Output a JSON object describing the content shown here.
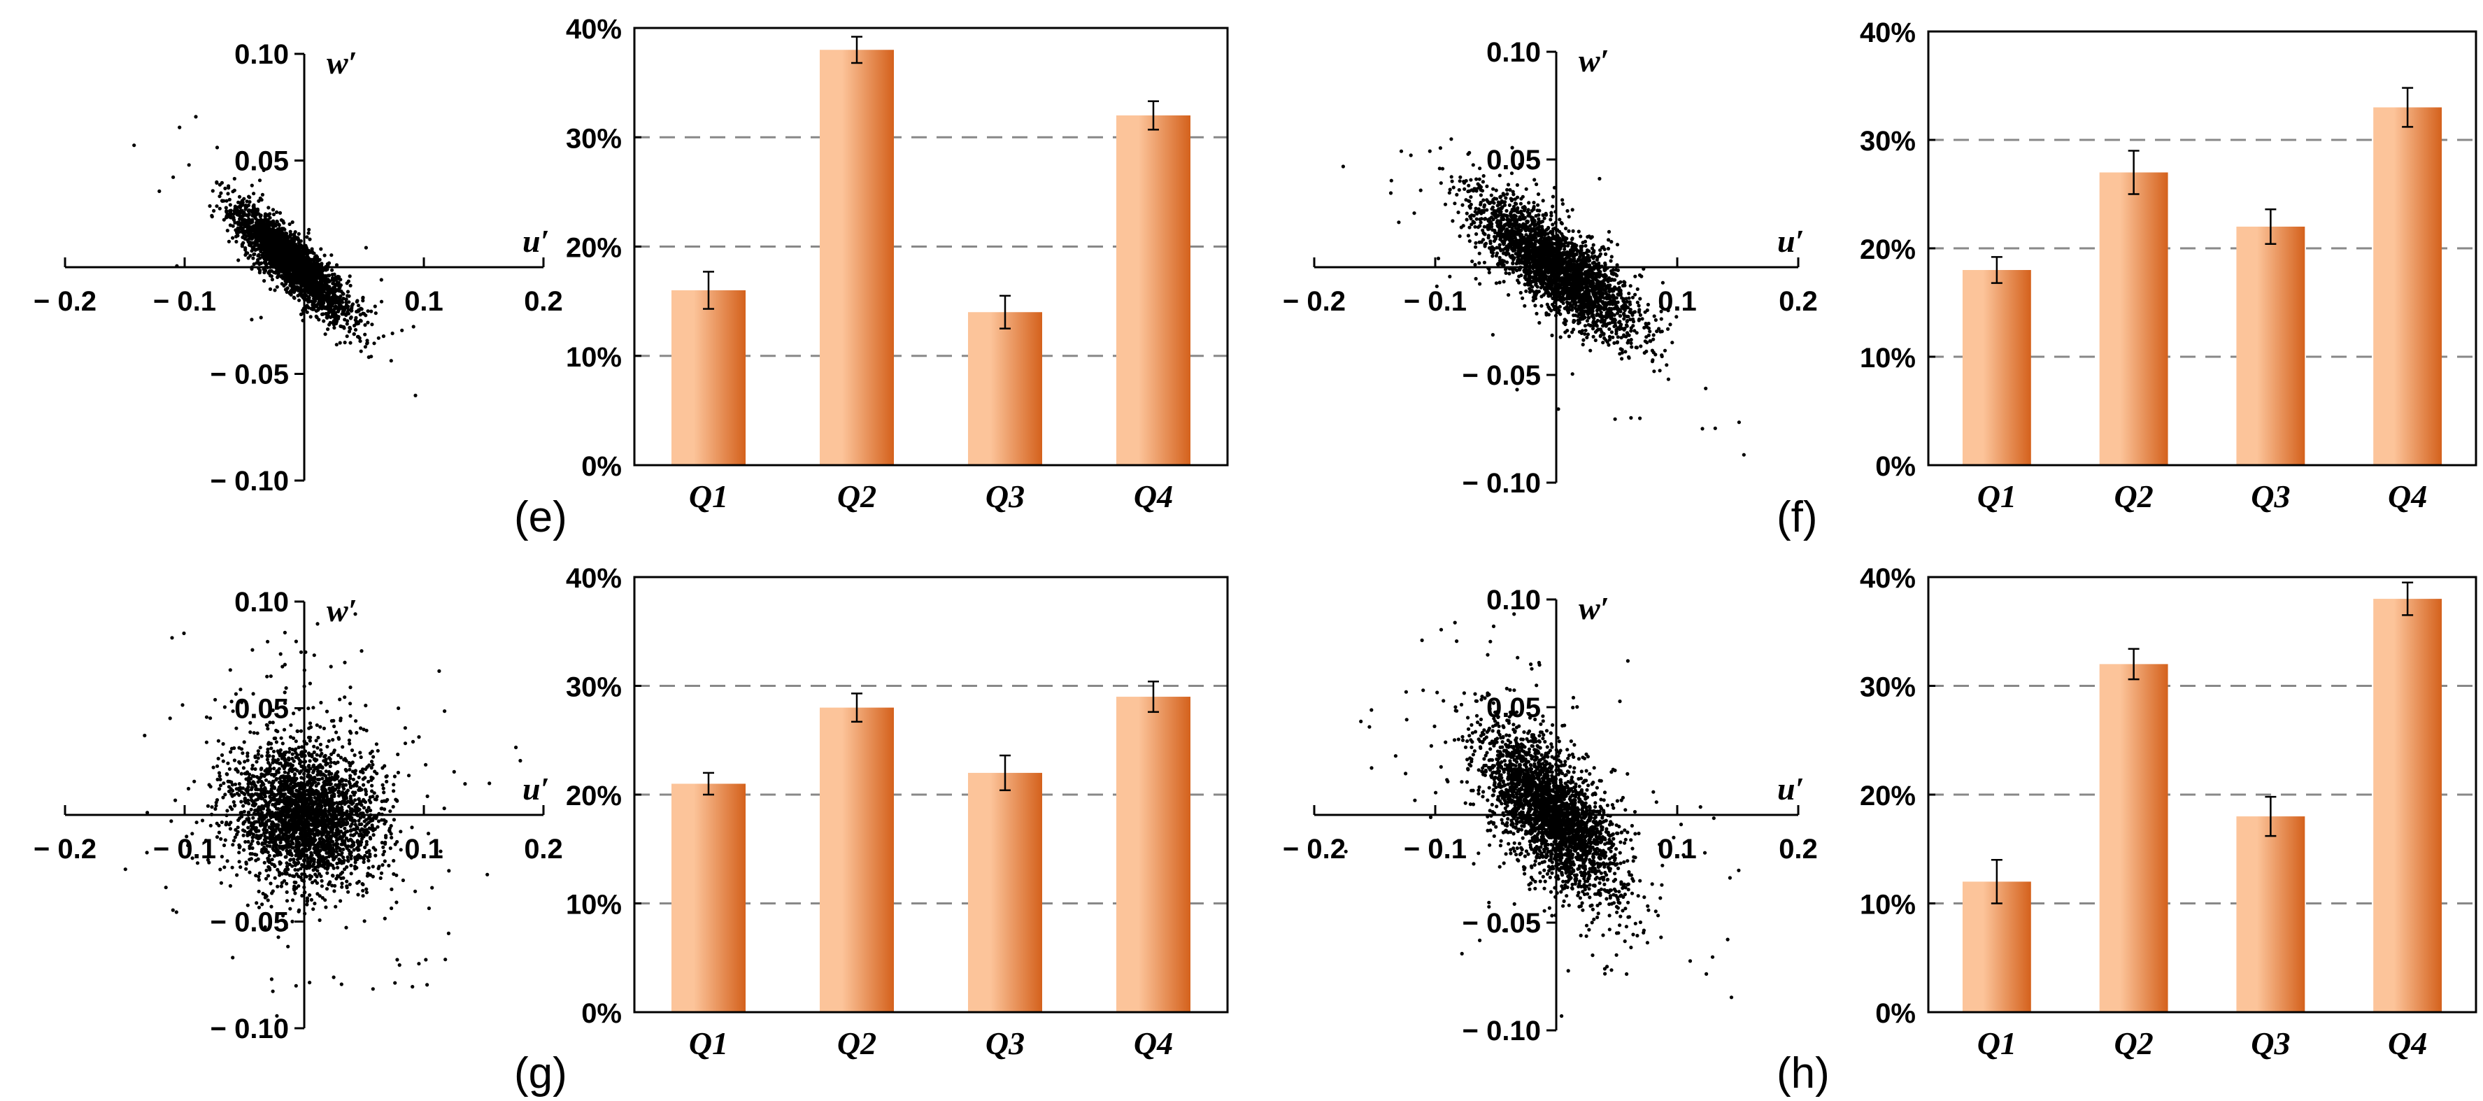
{
  "figure": {
    "panels": [
      {
        "label": "(e)",
        "label_text": "(e)"
      },
      {
        "label": "(f)",
        "label_text": "(f)"
      },
      {
        "label": "(g)",
        "label_text": "(g)"
      },
      {
        "label": "(h)",
        "label_text": "(h)"
      }
    ]
  },
  "colors": {
    "bar_light": "#fcc49a",
    "bar_dark": "#d4611c",
    "dots": "#000000",
    "grid": "#888888"
  },
  "chart_data": [
    {
      "panel": "(e)",
      "type": "scatter",
      "xlabel": "u′",
      "ylabel": "w′",
      "xlim": [
        -0.2,
        0.2
      ],
      "ylim": [
        -0.1,
        0.1
      ],
      "x_ticks": [
        "− 0.2",
        "− 0.1",
        "0.1",
        "0.2"
      ],
      "y_ticks": [
        "0.10",
        "0.05",
        "− 0.05",
        "− 0.10"
      ],
      "cloud": {
        "center": [
          -0.01,
          0.002
        ],
        "sd_major": 0.026,
        "sd_minor": 0.006,
        "slope": -0.5,
        "n": 2600,
        "outliers": 40,
        "seed": 11
      }
    },
    {
      "panel": "(e)",
      "type": "bar",
      "categories": [
        "Q1",
        "Q2",
        "Q3",
        "Q4"
      ],
      "values": [
        16,
        38,
        14,
        32
      ],
      "errors": [
        1.7,
        1.2,
        1.5,
        1.3
      ],
      "ylim": [
        0,
        40
      ],
      "y_ticks": [
        "0%",
        "10%",
        "20%",
        "30%",
        "40%"
      ],
      "unit": "%"
    },
    {
      "panel": "(f)",
      "type": "scatter",
      "xlabel": "u′",
      "ylabel": "w′",
      "xlim": [
        -0.2,
        0.2
      ],
      "ylim": [
        -0.1,
        0.1
      ],
      "x_ticks": [
        "− 0.2",
        "− 0.1",
        "0.1",
        "0.2"
      ],
      "y_ticks": [
        "0.10",
        "0.05",
        "− 0.05",
        "− 0.10"
      ],
      "cloud": {
        "center": [
          0.0,
          0.0
        ],
        "sd_major": 0.035,
        "sd_minor": 0.009,
        "slope": -0.42,
        "n": 2600,
        "outliers": 90,
        "seed": 23
      }
    },
    {
      "panel": "(f)",
      "type": "bar",
      "categories": [
        "Q1",
        "Q2",
        "Q3",
        "Q4"
      ],
      "values": [
        18,
        27,
        22,
        33
      ],
      "errors": [
        1.2,
        2.0,
        1.6,
        1.8
      ],
      "ylim": [
        0,
        40
      ],
      "y_ticks": [
        "0%",
        "10%",
        "20%",
        "30%",
        "40%"
      ],
      "unit": "%"
    },
    {
      "panel": "(g)",
      "type": "scatter",
      "xlabel": "u′",
      "ylabel": "w′",
      "xlim": [
        -0.2,
        0.2
      ],
      "ylim": [
        -0.1,
        0.1
      ],
      "x_ticks": [
        "− 0.2",
        "− 0.1",
        "0.1",
        "0.2"
      ],
      "y_ticks": [
        "0.10",
        "0.05",
        "− 0.05",
        "− 0.10"
      ],
      "cloud": {
        "center": [
          0.0,
          0.0
        ],
        "sd_major": 0.03,
        "sd_minor": 0.016,
        "slope": -0.1,
        "n": 2600,
        "outliers": 220,
        "seed": 37
      }
    },
    {
      "panel": "(g)",
      "type": "bar",
      "categories": [
        "Q1",
        "Q2",
        "Q3",
        "Q4"
      ],
      "values": [
        21,
        28,
        22,
        29
      ],
      "errors": [
        1.0,
        1.3,
        1.6,
        1.4
      ],
      "ylim": [
        0,
        40
      ],
      "y_ticks": [
        "0%",
        "10%",
        "20%",
        "30%",
        "40%"
      ],
      "unit": "%"
    },
    {
      "panel": "(h)",
      "type": "scatter",
      "xlabel": "u′",
      "ylabel": "w′",
      "xlim": [
        -0.2,
        0.2
      ],
      "ylim": [
        -0.1,
        0.1
      ],
      "x_ticks": [
        "− 0.2",
        "− 0.1",
        "0.1",
        "0.2"
      ],
      "y_ticks": [
        "0.10",
        "0.05",
        "− 0.05",
        "− 0.10"
      ],
      "cloud": {
        "center": [
          -0.003,
          0.0
        ],
        "sd_major": 0.032,
        "sd_minor": 0.013,
        "slope": -0.55,
        "n": 2600,
        "outliers": 200,
        "seed": 53
      }
    },
    {
      "panel": "(h)",
      "type": "bar",
      "categories": [
        "Q1",
        "Q2",
        "Q3",
        "Q4"
      ],
      "values": [
        12,
        32,
        18,
        38
      ],
      "errors": [
        2.0,
        1.4,
        1.8,
        1.5
      ],
      "ylim": [
        0,
        40
      ],
      "y_ticks": [
        "0%",
        "10%",
        "20%",
        "30%",
        "40%"
      ],
      "unit": "%"
    }
  ]
}
